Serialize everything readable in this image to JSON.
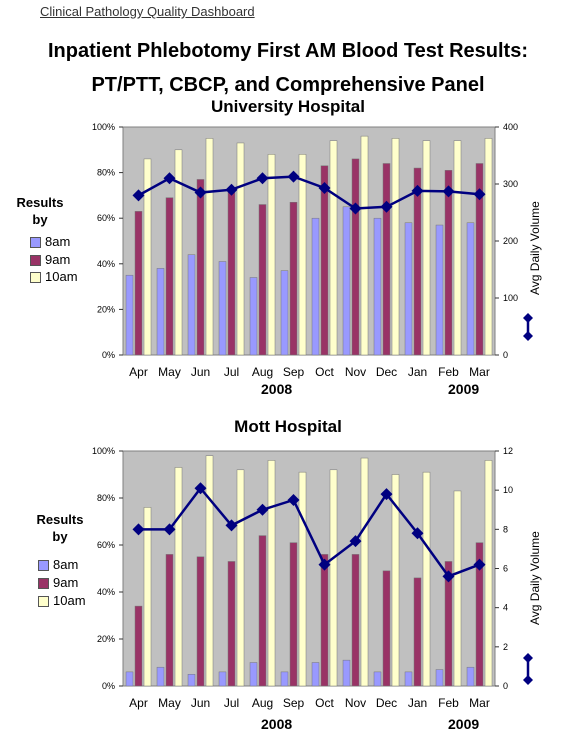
{
  "header": {
    "label": "Clinical Pathology Quality Dashboard",
    "title_line1": "Inpatient Phlebotomy First AM Blood Test Results:",
    "title_line2": "PT/PTT, CBCP, and Comprehensive Panel"
  },
  "legend_labels": {
    "results_by_line1": "Results",
    "results_by_line2": "by",
    "volume_axis_title": "Avg Daily Volume"
  },
  "colors": {
    "plot_bg": "#c0c0c0",
    "bar_8am": "#9999ff",
    "bar_9am": "#993366",
    "bar_10am": "#ffffcc",
    "line": "#000080"
  },
  "chart_data": [
    {
      "type": "bar",
      "title": "University Hospital",
      "categories": [
        "Apr",
        "May",
        "Jun",
        "Jul",
        "Aug",
        "Sep",
        "Oct",
        "Nov",
        "Dec",
        "Jan",
        "Feb",
        "Mar"
      ],
      "year_labels": [
        "2008",
        "2009"
      ],
      "ylim": [
        0,
        1
      ],
      "yticks": [
        "0%",
        "20%",
        "40%",
        "60%",
        "80%",
        "100%"
      ],
      "y2lim": [
        0,
        400
      ],
      "y2ticks": [
        "0",
        "100",
        "200",
        "300",
        "400"
      ],
      "y2label": "Avg Daily Volume",
      "series": [
        {
          "name": "8am",
          "values": [
            0.35,
            0.38,
            0.44,
            0.41,
            0.34,
            0.37,
            0.6,
            0.65,
            0.6,
            0.58,
            0.57,
            0.58
          ]
        },
        {
          "name": "9am",
          "values": [
            0.63,
            0.69,
            0.77,
            0.72,
            0.66,
            0.67,
            0.83,
            0.86,
            0.84,
            0.82,
            0.81,
            0.84
          ]
        },
        {
          "name": "10am",
          "values": [
            0.86,
            0.9,
            0.95,
            0.93,
            0.88,
            0.88,
            0.94,
            0.96,
            0.95,
            0.94,
            0.94,
            0.95
          ]
        }
      ],
      "volume": [
        280,
        310,
        285,
        290,
        310,
        313,
        293,
        257,
        260,
        288,
        287,
        282
      ]
    },
    {
      "type": "bar",
      "title": "Mott Hospital",
      "categories": [
        "Apr",
        "May",
        "Jun",
        "Jul",
        "Aug",
        "Sep",
        "Oct",
        "Nov",
        "Dec",
        "Jan",
        "Feb",
        "Mar"
      ],
      "year_labels": [
        "2008",
        "2009"
      ],
      "ylim": [
        0,
        1
      ],
      "yticks": [
        "0%",
        "20%",
        "40%",
        "60%",
        "80%",
        "100%"
      ],
      "y2lim": [
        0,
        12
      ],
      "y2ticks": [
        "0",
        "2",
        "4",
        "6",
        "8",
        "10",
        "12"
      ],
      "y2label": "Avg Daily Volume",
      "series": [
        {
          "name": "8am",
          "values": [
            0.06,
            0.08,
            0.05,
            0.06,
            0.1,
            0.06,
            0.1,
            0.11,
            0.06,
            0.06,
            0.07,
            0.08
          ]
        },
        {
          "name": "9am",
          "values": [
            0.34,
            0.56,
            0.55,
            0.53,
            0.64,
            0.61,
            0.56,
            0.56,
            0.49,
            0.46,
            0.53,
            0.61
          ]
        },
        {
          "name": "10am",
          "values": [
            0.76,
            0.93,
            0.98,
            0.92,
            0.96,
            0.91,
            0.92,
            0.97,
            0.9,
            0.91,
            0.83,
            0.96
          ]
        }
      ],
      "volume": [
        8.0,
        8.0,
        10.1,
        8.2,
        9.0,
        9.5,
        6.2,
        7.4,
        9.8,
        7.8,
        5.6,
        6.2
      ]
    }
  ]
}
